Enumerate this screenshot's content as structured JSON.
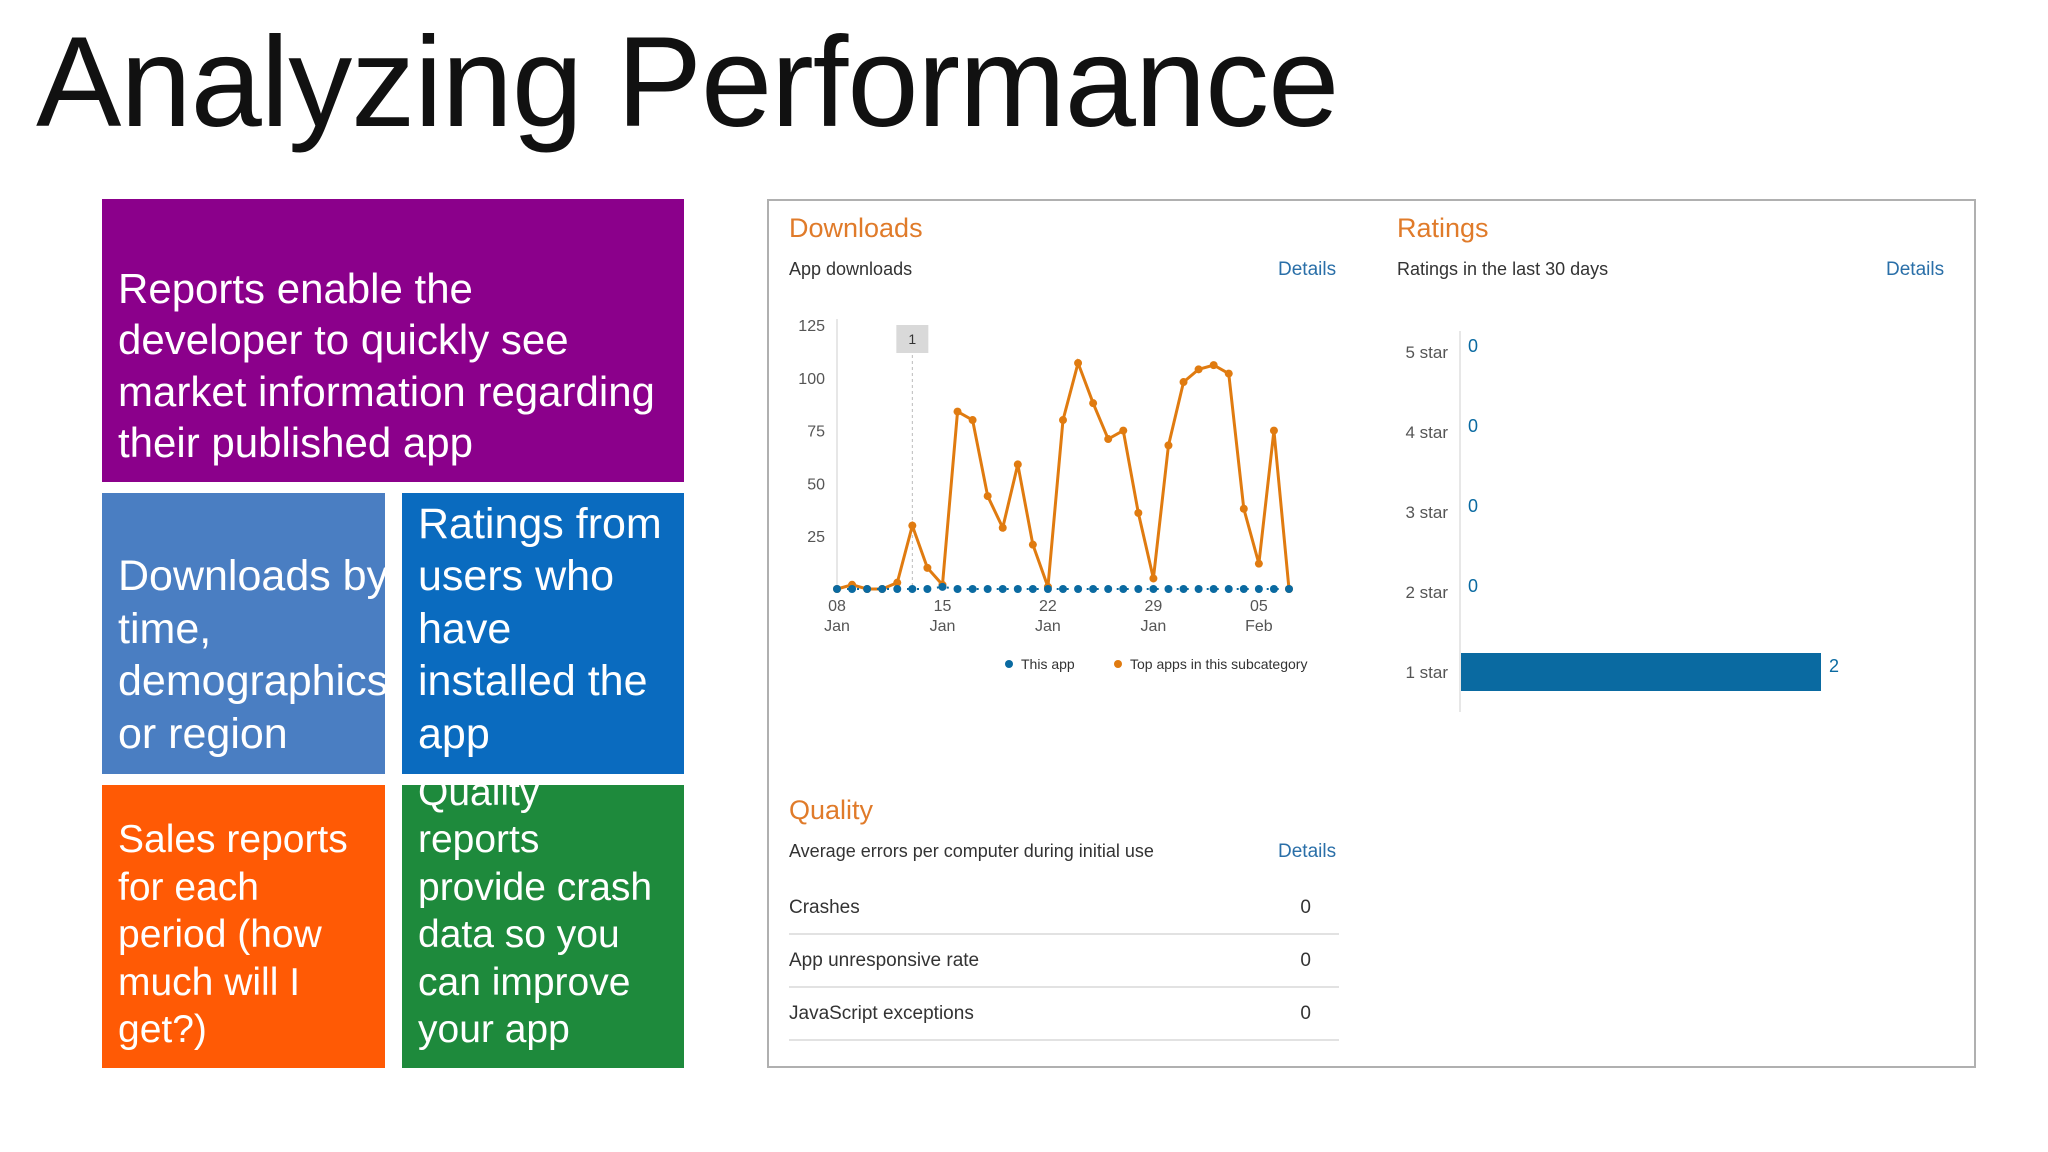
{
  "slide": {
    "title": "Analyzing Performance"
  },
  "tiles": [
    {
      "text": "Reports enable the developer to quickly see market information regarding their published app",
      "color": "#8b008b"
    },
    {
      "text": "Downloads by time, demographics, or region",
      "color": "#4a7ec2"
    },
    {
      "text": "Ratings from users who have installed the app",
      "color": "#0a6bbf"
    },
    {
      "text": "Sales reports for each period (how much will I get?)",
      "color": "#ff5a05"
    },
    {
      "text": "Quality reports provide crash data so you can improve your app",
      "color": "#1e8a3c"
    }
  ],
  "downloads": {
    "title": "Downloads",
    "subtitle": "App downloads",
    "details": "Details",
    "marker_label": "1",
    "legend": {
      "this_app": "This app",
      "top_apps": "Top apps in this subcategory"
    }
  },
  "ratings": {
    "title": "Ratings",
    "subtitle": "Ratings in the last 30 days",
    "details": "Details"
  },
  "quality": {
    "title": "Quality",
    "subtitle": "Average errors per computer during initial use",
    "details": "Details",
    "rows": [
      {
        "label": "Crashes",
        "value": "0"
      },
      {
        "label": "App unresponsive rate",
        "value": "0"
      },
      {
        "label": "JavaScript exceptions",
        "value": "0"
      }
    ]
  },
  "chart_data": [
    {
      "type": "line",
      "title": "App downloads",
      "x": [
        "2014-01-08",
        "2014-01-09",
        "2014-01-10",
        "2014-01-11",
        "2014-01-12",
        "2014-01-13",
        "2014-01-14",
        "2014-01-15",
        "2014-01-16",
        "2014-01-17",
        "2014-01-18",
        "2014-01-19",
        "2014-01-20",
        "2014-01-21",
        "2014-01-22",
        "2014-01-23",
        "2014-01-24",
        "2014-01-25",
        "2014-01-26",
        "2014-01-27",
        "2014-01-28",
        "2014-01-29",
        "2014-01-30",
        "2014-01-31",
        "2014-02-01",
        "2014-02-02",
        "2014-02-03",
        "2014-02-04",
        "2014-02-05",
        "2014-02-06",
        "2014-02-07"
      ],
      "xticks": [
        {
          "value": "2014-01-08",
          "label": "08\nJan"
        },
        {
          "value": "2014-01-15",
          "label": "15\nJan"
        },
        {
          "value": "2014-01-22",
          "label": "22\nJan"
        },
        {
          "value": "2014-01-29",
          "label": "29\nJan"
        },
        {
          "value": "2014-02-05",
          "label": "05\nFeb"
        }
      ],
      "ylim": [
        0,
        125
      ],
      "yticks": [
        25,
        50,
        75,
        100,
        125
      ],
      "series": [
        {
          "name": "This app",
          "color": "#0a6aa1",
          "values": [
            0,
            0,
            0,
            0,
            0,
            0,
            0,
            1,
            0,
            0,
            0,
            0,
            0,
            0,
            0,
            0,
            0,
            0,
            0,
            0,
            0,
            0,
            0,
            0,
            0,
            0,
            0,
            0,
            0,
            0,
            0
          ]
        },
        {
          "name": "Top apps in this subcategory",
          "color": "#e07b10",
          "values": [
            0,
            2,
            0,
            0,
            3,
            30,
            10,
            2,
            84,
            80,
            44,
            29,
            59,
            21,
            1,
            80,
            107,
            88,
            71,
            75,
            36,
            5,
            68,
            98,
            104,
            106,
            102,
            38,
            12,
            75,
            0
          ]
        }
      ]
    },
    {
      "type": "bar",
      "title": "Ratings in the last 30 days",
      "orientation": "horizontal",
      "categories": [
        "5 star",
        "4 star",
        "3 star",
        "2 star",
        "1 star"
      ],
      "values": [
        0,
        0,
        0,
        0,
        2
      ],
      "color": "#0a6aa1"
    }
  ]
}
